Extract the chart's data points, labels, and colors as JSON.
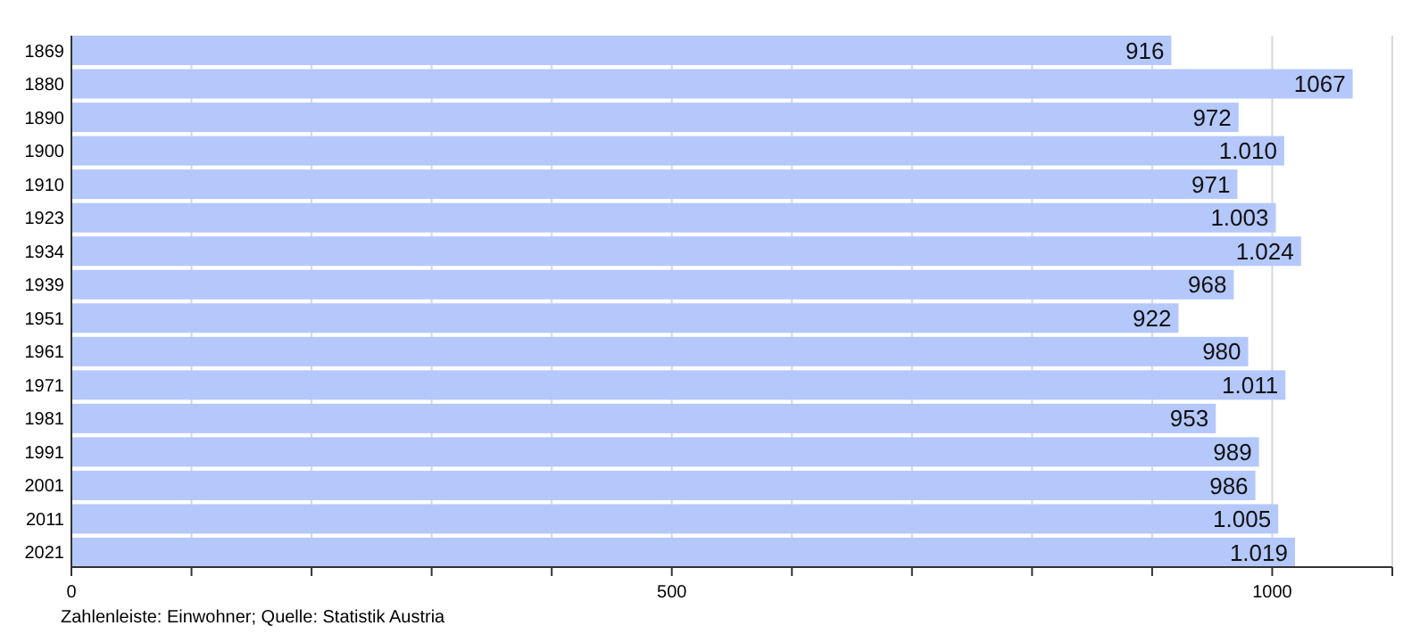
{
  "chart_data": {
    "type": "bar",
    "orientation": "horizontal",
    "categories": [
      "1869",
      "1880",
      "1890",
      "1900",
      "1910",
      "1923",
      "1934",
      "1939",
      "1951",
      "1961",
      "1971",
      "1981",
      "1991",
      "2001",
      "2011",
      "2021"
    ],
    "values": [
      916,
      1067,
      972,
      1010,
      971,
      1003,
      1024,
      968,
      922,
      980,
      1011,
      953,
      989,
      986,
      1005,
      1019
    ],
    "value_labels": [
      "916",
      "1067",
      "972",
      "1.010",
      "971",
      "1.003",
      "1.024",
      "968",
      "922",
      "980",
      "1.011",
      "953",
      "989",
      "986",
      "1.005",
      "1.019"
    ],
    "color": "#b4c8fc",
    "xlim": [
      0,
      1100
    ],
    "xticks": [
      0,
      {
        "value": 100,
        "label": null
      },
      {
        "value": 200,
        "label": null
      },
      {
        "value": 300,
        "label": null
      },
      {
        "value": 400,
        "label": null
      },
      500,
      {
        "value": 600,
        "label": null
      },
      {
        "value": 700,
        "label": null
      },
      {
        "value": 800,
        "label": null
      },
      {
        "value": 900,
        "label": null
      },
      1000,
      {
        "value": 1100,
        "label": null
      }
    ],
    "grid": "x",
    "annotations": [
      "Zahlenleiste: Einwohner; Quelle: Statistik Austria"
    ]
  }
}
